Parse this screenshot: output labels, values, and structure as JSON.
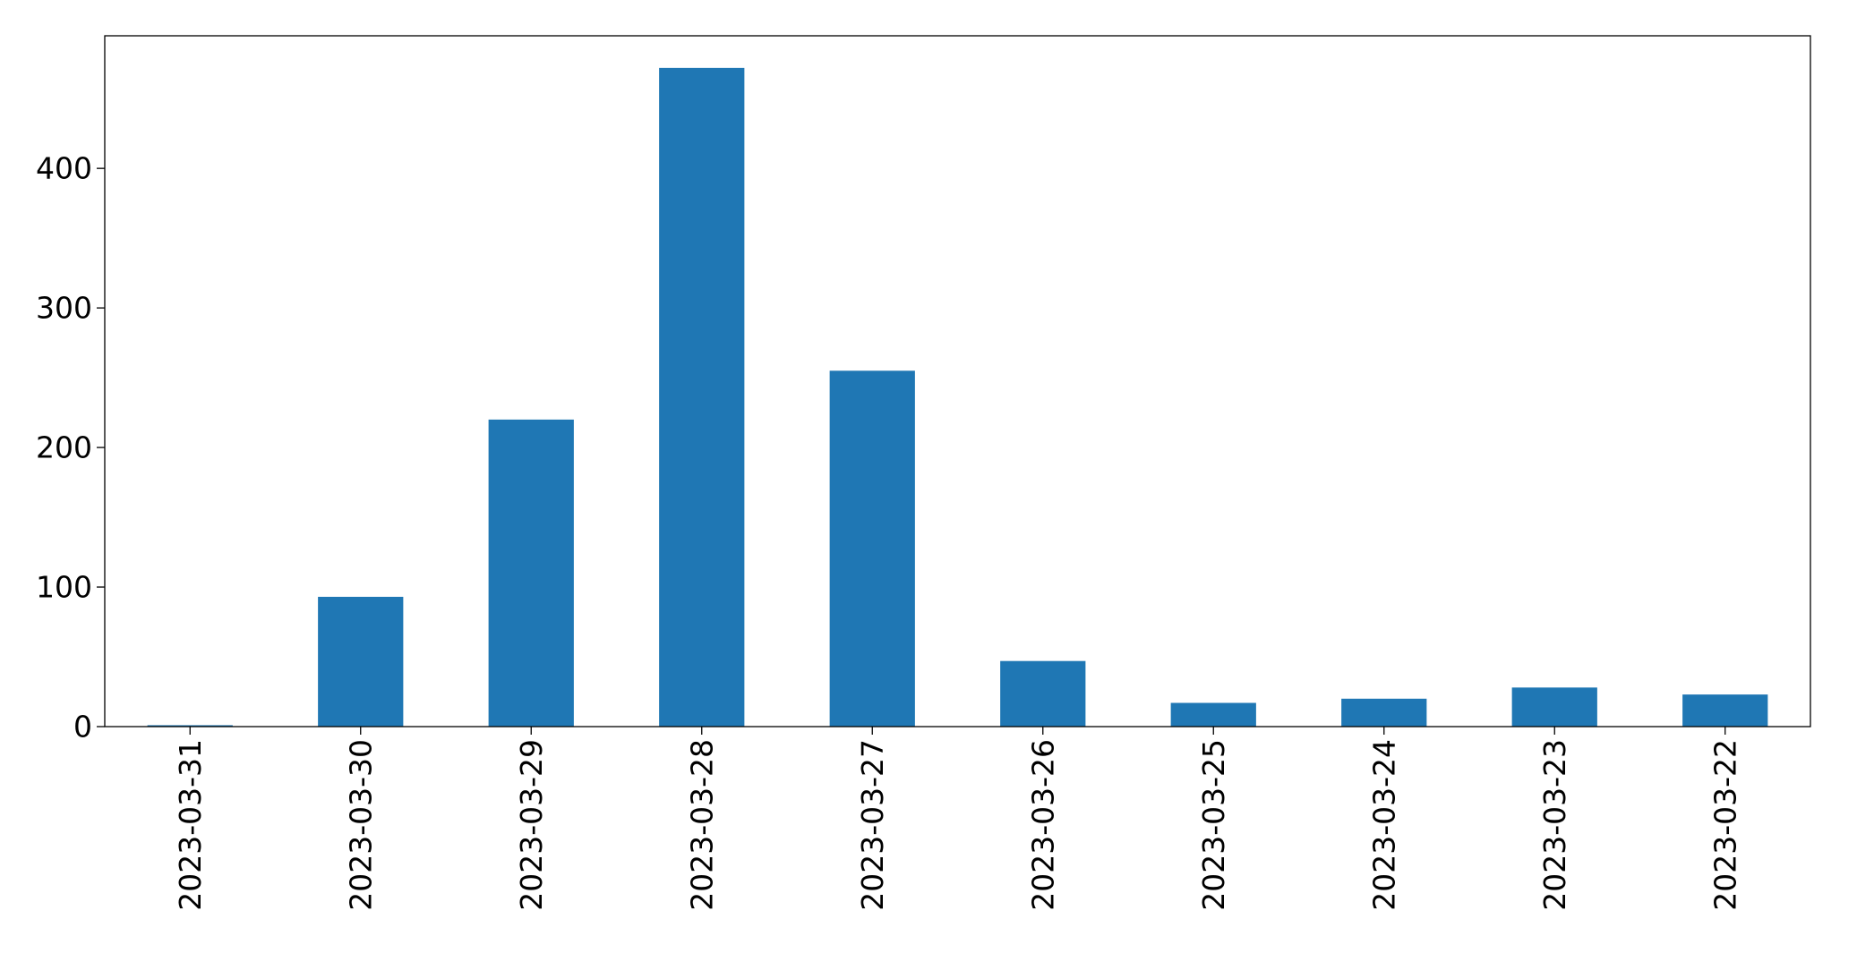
{
  "chart_data": {
    "type": "bar",
    "title": "",
    "xlabel": "",
    "ylabel": "",
    "categories": [
      "2023-03-31",
      "2023-03-30",
      "2023-03-29",
      "2023-03-28",
      "2023-03-27",
      "2023-03-26",
      "2023-03-25",
      "2023-03-24",
      "2023-03-23",
      "2023-03-22"
    ],
    "values": [
      1,
      93,
      220,
      472,
      255,
      47,
      17,
      20,
      28,
      23
    ],
    "ylim": [
      0,
      495
    ],
    "yticks": [
      0,
      100,
      200,
      300,
      400
    ],
    "ytick_labels": [
      "0",
      "100",
      "200",
      "300",
      "400"
    ],
    "grid": false,
    "legend": "none",
    "bar_color": "#1f77b4"
  }
}
